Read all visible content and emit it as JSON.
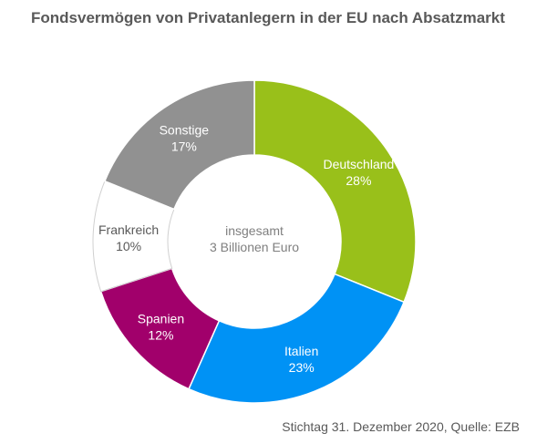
{
  "chart_data": {
    "type": "pie",
    "title": "Fondsvermögen von Privatanlegern in der EU nach Absatzmarkt",
    "center_label": [
      "insgesamt",
      "3 Billionen Euro"
    ],
    "source": "Stichtag 31. Dezember 2020, Quelle: EZB",
    "slices": [
      {
        "label": "Deutschland",
        "value": 28,
        "display": "28%",
        "color": "#99c01a",
        "text_color": "#ffffff"
      },
      {
        "label": "Italien",
        "value": 23,
        "display": "23%",
        "color": "#0092f5",
        "text_color": "#ffffff"
      },
      {
        "label": "Spanien",
        "value": 12,
        "display": "12%",
        "color": "#a1006b",
        "text_color": "#ffffff"
      },
      {
        "label": "Frankreich",
        "value": 10,
        "display": "10%",
        "color": "#ffffff",
        "text_color": "#595959"
      },
      {
        "label": "Sonstige",
        "value": 17,
        "display": "17%",
        "color": "#919191",
        "text_color": "#ffffff"
      }
    ]
  }
}
